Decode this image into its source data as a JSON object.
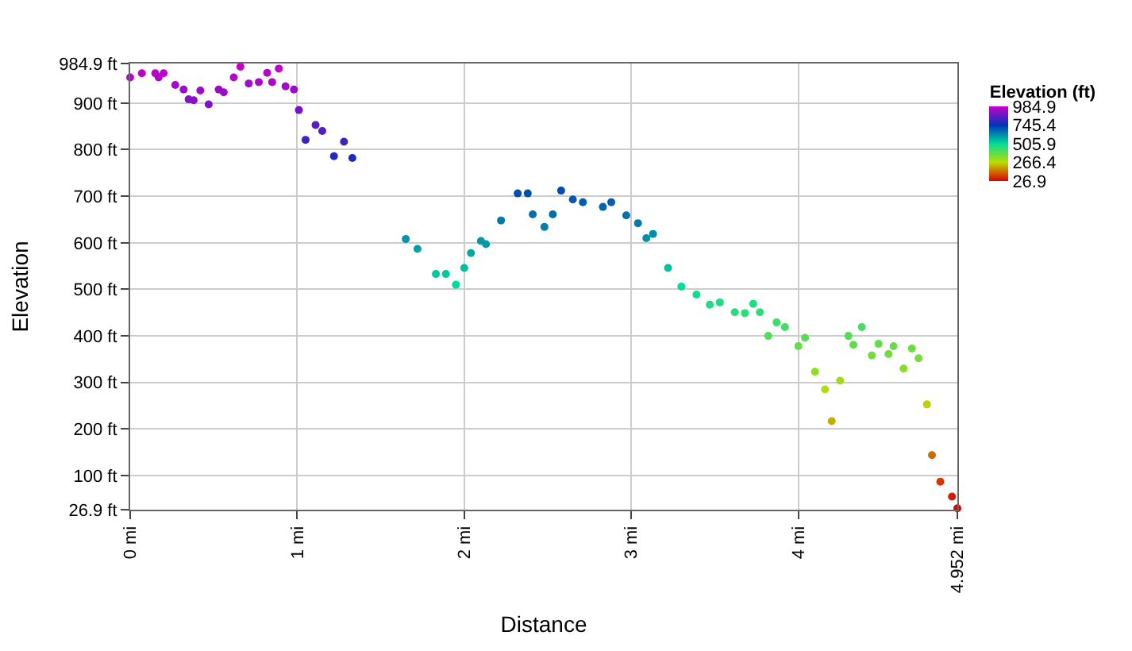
{
  "chart_data": {
    "type": "scatter",
    "xlabel": "Distance",
    "ylabel": "Elevation",
    "clabel": "Elevation (ft)",
    "x": [
      0,
      0.07,
      0.15,
      0.17,
      0.2,
      0.27,
      0.32,
      0.35,
      0.38,
      0.42,
      0.47,
      0.53,
      0.56,
      0.62,
      0.66,
      0.71,
      0.77,
      0.82,
      0.85,
      0.89,
      0.93,
      0.98,
      1.01,
      1.05,
      1.11,
      1.15,
      1.22,
      1.28,
      1.33,
      1.65,
      1.72,
      1.83,
      1.89,
      1.95,
      2.0,
      2.04,
      2.1,
      2.13,
      2.22,
      2.32,
      2.38,
      2.41,
      2.48,
      2.53,
      2.58,
      2.65,
      2.71,
      2.83,
      2.88,
      2.97,
      3.04,
      3.09,
      3.13,
      3.22,
      3.3,
      3.39,
      3.47,
      3.53,
      3.62,
      3.68,
      3.73,
      3.77,
      3.82,
      3.87,
      3.92,
      4.0,
      4.04,
      4.1,
      4.16,
      4.2,
      4.25,
      4.3,
      4.33,
      4.38,
      4.44,
      4.48,
      4.54,
      4.57,
      4.63,
      4.68,
      4.72,
      4.77,
      4.8,
      4.85,
      4.92,
      4.952
    ],
    "series": [
      {
        "values": [
          955,
          964,
          964,
          955,
          964,
          939,
          929,
          908,
          906,
          927,
          897,
          929,
          923,
          955,
          978,
          942,
          945,
          965,
          945,
          974,
          936,
          929,
          885,
          821,
          853,
          840,
          786,
          817,
          782,
          608,
          587,
          533,
          533,
          510,
          546,
          578,
          604,
          597,
          648,
          706,
          706,
          661,
          634,
          661,
          712,
          693,
          687,
          677,
          687,
          659,
          642,
          610,
          619,
          546,
          506,
          489,
          467,
          472,
          451,
          449,
          469,
          451,
          400,
          429,
          419,
          378,
          396,
          323,
          285,
          217,
          304,
          400,
          381,
          419,
          358,
          383,
          361,
          378,
          330,
          373,
          352,
          253,
          144,
          87,
          55,
          30
        ],
        "cvalues": [
          955,
          964,
          964,
          955,
          964,
          939,
          929,
          908,
          906,
          927,
          897,
          929,
          923,
          955,
          978,
          942,
          945,
          965,
          945,
          974,
          936,
          929,
          885,
          821,
          853,
          840,
          786,
          817,
          782,
          608,
          587,
          533,
          533,
          510,
          546,
          578,
          604,
          597,
          648,
          706,
          706,
          661,
          634,
          661,
          712,
          693,
          687,
          677,
          687,
          659,
          642,
          610,
          619,
          546,
          506,
          489,
          467,
          472,
          451,
          449,
          469,
          451,
          400,
          429,
          419,
          378,
          396,
          323,
          285,
          217,
          304,
          400,
          381,
          419,
          358,
          383,
          361,
          378,
          330,
          373,
          352,
          253,
          144,
          87,
          55,
          30
        ]
      }
    ],
    "xlim": [
      0,
      4.952
    ],
    "xticks": [
      {
        "value": 0,
        "label": "0 mi"
      },
      {
        "value": 1,
        "label": "1 mi"
      },
      {
        "value": 2,
        "label": "2 mi"
      },
      {
        "value": 3,
        "label": "3 mi"
      },
      {
        "value": 4,
        "label": "4 mi"
      },
      {
        "value": 4.952,
        "label": "4.952 mi"
      }
    ],
    "ylim": [
      26.9,
      984.9
    ],
    "yticks": [
      {
        "value": 26.9,
        "label": "26.9 ft"
      },
      {
        "value": 100,
        "label": "100 ft"
      },
      {
        "value": 200,
        "label": "200 ft"
      },
      {
        "value": 300,
        "label": "300 ft"
      },
      {
        "value": 400,
        "label": "400 ft"
      },
      {
        "value": 500,
        "label": "500 ft"
      },
      {
        "value": 600,
        "label": "600 ft"
      },
      {
        "value": 700,
        "label": "700 ft"
      },
      {
        "value": 800,
        "label": "800 ft"
      },
      {
        "value": 900,
        "label": "900 ft"
      },
      {
        "value": 984.9,
        "label": "984.9 ft"
      }
    ],
    "clim": [
      26.9,
      984.9
    ],
    "cticks": [
      984.9,
      745.4,
      505.9,
      266.4,
      26.9
    ],
    "grid": true,
    "marker": "circle",
    "legend": false
  }
}
